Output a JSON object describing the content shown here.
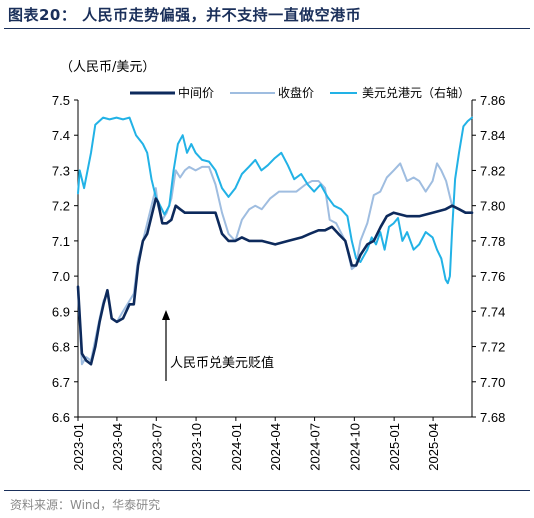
{
  "figure": {
    "title": "图表20：  人民币走势偏强，并不支持一直做空港币",
    "source": "资料来源：Wind，华泰研究"
  },
  "chart_data": {
    "type": "line",
    "y_unit_label": "（人民币/美元）",
    "ylim_left": [
      6.6,
      7.5
    ],
    "ylim_right": [
      7.68,
      7.86
    ],
    "left_ticks": [
      "6.6",
      "6.7",
      "6.8",
      "6.9",
      "7.0",
      "7.1",
      "7.2",
      "7.3",
      "7.4",
      "7.5"
    ],
    "right_ticks": [
      "7.68",
      "7.70",
      "7.72",
      "7.74",
      "7.76",
      "7.78",
      "7.80",
      "7.82",
      "7.84",
      "7.86"
    ],
    "x_ticks": [
      "2023-01",
      "2023-04",
      "2023-07",
      "2023-10",
      "2024-01",
      "2024-04",
      "2024-07",
      "2024-10",
      "2025-01",
      "2025-04"
    ],
    "x_range": [
      "2023-01-01",
      "2025-06-30"
    ],
    "legend_position": "top",
    "annotation": "人民币兑美元贬值",
    "series": [
      {
        "name": "中间价",
        "axis": "left",
        "color": "#0d2a5c",
        "points": [
          [
            "2023-01-01",
            6.97
          ],
          [
            "2023-01-10",
            6.78
          ],
          [
            "2023-01-20",
            6.76
          ],
          [
            "2023-01-31",
            6.75
          ],
          [
            "2023-02-10",
            6.8
          ],
          [
            "2023-02-20",
            6.87
          ],
          [
            "2023-03-01",
            6.92
          ],
          [
            "2023-03-10",
            6.96
          ],
          [
            "2023-03-20",
            6.88
          ],
          [
            "2023-04-01",
            6.87
          ],
          [
            "2023-04-15",
            6.88
          ],
          [
            "2023-04-30",
            6.92
          ],
          [
            "2023-05-10",
            6.92
          ],
          [
            "2023-05-20",
            7.03
          ],
          [
            "2023-05-31",
            7.1
          ],
          [
            "2023-06-10",
            7.12
          ],
          [
            "2023-06-20",
            7.17
          ],
          [
            "2023-06-30",
            7.22
          ],
          [
            "2023-07-05",
            7.21
          ],
          [
            "2023-07-15",
            7.15
          ],
          [
            "2023-07-25",
            7.15
          ],
          [
            "2023-08-05",
            7.16
          ],
          [
            "2023-08-15",
            7.2
          ],
          [
            "2023-08-25",
            7.19
          ],
          [
            "2023-09-05",
            7.18
          ],
          [
            "2023-09-30",
            7.18
          ],
          [
            "2023-10-31",
            7.18
          ],
          [
            "2023-11-15",
            7.18
          ],
          [
            "2023-11-30",
            7.12
          ],
          [
            "2023-12-15",
            7.1
          ],
          [
            "2023-12-31",
            7.1
          ],
          [
            "2024-01-15",
            7.11
          ],
          [
            "2024-02-01",
            7.1
          ],
          [
            "2024-03-01",
            7.1
          ],
          [
            "2024-04-01",
            7.09
          ],
          [
            "2024-05-01",
            7.1
          ],
          [
            "2024-06-01",
            7.11
          ],
          [
            "2024-06-20",
            7.12
          ],
          [
            "2024-07-10",
            7.13
          ],
          [
            "2024-07-25",
            7.13
          ],
          [
            "2024-08-10",
            7.14
          ],
          [
            "2024-08-25",
            7.12
          ],
          [
            "2024-09-10",
            7.1
          ],
          [
            "2024-09-25",
            7.03
          ],
          [
            "2024-10-05",
            7.03
          ],
          [
            "2024-10-15",
            7.06
          ],
          [
            "2024-10-31",
            7.09
          ],
          [
            "2024-11-15",
            7.1
          ],
          [
            "2024-12-01",
            7.14
          ],
          [
            "2024-12-15",
            7.17
          ],
          [
            "2024-12-31",
            7.18
          ],
          [
            "2025-01-31",
            7.17
          ],
          [
            "2025-02-28",
            7.17
          ],
          [
            "2025-03-31",
            7.18
          ],
          [
            "2025-04-30",
            7.19
          ],
          [
            "2025-05-15",
            7.2
          ],
          [
            "2025-05-31",
            7.19
          ],
          [
            "2025-06-15",
            7.18
          ],
          [
            "2025-06-30",
            7.18
          ]
        ]
      },
      {
        "name": "收盘价",
        "axis": "left",
        "color": "#9fbde0",
        "points": [
          [
            "2023-01-01",
            6.96
          ],
          [
            "2023-01-10",
            6.75
          ],
          [
            "2023-01-20",
            6.77
          ],
          [
            "2023-01-31",
            6.76
          ],
          [
            "2023-02-10",
            6.82
          ],
          [
            "2023-02-20",
            6.88
          ],
          [
            "2023-03-01",
            6.93
          ],
          [
            "2023-03-10",
            6.95
          ],
          [
            "2023-03-20",
            6.88
          ],
          [
            "2023-04-01",
            6.87
          ],
          [
            "2023-04-15",
            6.9
          ],
          [
            "2023-04-30",
            6.93
          ],
          [
            "2023-05-10",
            6.95
          ],
          [
            "2023-05-20",
            7.05
          ],
          [
            "2023-05-31",
            7.1
          ],
          [
            "2023-06-10",
            7.15
          ],
          [
            "2023-06-20",
            7.2
          ],
          [
            "2023-06-30",
            7.25
          ],
          [
            "2023-07-05",
            7.2
          ],
          [
            "2023-07-15",
            7.16
          ],
          [
            "2023-07-25",
            7.18
          ],
          [
            "2023-08-05",
            7.22
          ],
          [
            "2023-08-15",
            7.3
          ],
          [
            "2023-08-25",
            7.28
          ],
          [
            "2023-09-05",
            7.3
          ],
          [
            "2023-09-15",
            7.31
          ],
          [
            "2023-09-30",
            7.3
          ],
          [
            "2023-10-15",
            7.31
          ],
          [
            "2023-10-31",
            7.31
          ],
          [
            "2023-11-15",
            7.26
          ],
          [
            "2023-11-30",
            7.18
          ],
          [
            "2023-12-15",
            7.12
          ],
          [
            "2023-12-31",
            7.1
          ],
          [
            "2024-01-15",
            7.16
          ],
          [
            "2024-02-01",
            7.19
          ],
          [
            "2024-02-15",
            7.2
          ],
          [
            "2024-03-01",
            7.19
          ],
          [
            "2024-03-20",
            7.22
          ],
          [
            "2024-04-10",
            7.24
          ],
          [
            "2024-05-01",
            7.24
          ],
          [
            "2024-05-20",
            7.24
          ],
          [
            "2024-06-10",
            7.26
          ],
          [
            "2024-06-25",
            7.27
          ],
          [
            "2024-07-10",
            7.27
          ],
          [
            "2024-07-25",
            7.25
          ],
          [
            "2024-08-05",
            7.16
          ],
          [
            "2024-08-20",
            7.15
          ],
          [
            "2024-09-10",
            7.1
          ],
          [
            "2024-09-25",
            7.02
          ],
          [
            "2024-10-05",
            7.03
          ],
          [
            "2024-10-15",
            7.1
          ],
          [
            "2024-10-31",
            7.15
          ],
          [
            "2024-11-15",
            7.23
          ],
          [
            "2024-11-30",
            7.24
          ],
          [
            "2024-12-15",
            7.28
          ],
          [
            "2024-12-31",
            7.3
          ],
          [
            "2025-01-15",
            7.32
          ],
          [
            "2025-01-31",
            7.27
          ],
          [
            "2025-02-15",
            7.28
          ],
          [
            "2025-02-28",
            7.27
          ],
          [
            "2025-03-15",
            7.24
          ],
          [
            "2025-03-31",
            7.27
          ],
          [
            "2025-04-10",
            7.32
          ],
          [
            "2025-04-20",
            7.3
          ],
          [
            "2025-05-01",
            7.27
          ],
          [
            "2025-05-15",
            7.2
          ],
          [
            "2025-06-01",
            7.19
          ],
          [
            "2025-06-15",
            7.18
          ],
          [
            "2025-06-30",
            7.18
          ]
        ]
      },
      {
        "name": "美元兑港元（右轴）",
        "axis": "right",
        "color": "#22b2e6",
        "points": [
          [
            "2023-01-01",
            7.807
          ],
          [
            "2023-01-05",
            7.82
          ],
          [
            "2023-01-15",
            7.81
          ],
          [
            "2023-01-31",
            7.83
          ],
          [
            "2023-02-10",
            7.846
          ],
          [
            "2023-02-28",
            7.85
          ],
          [
            "2023-03-15",
            7.849
          ],
          [
            "2023-03-31",
            7.85
          ],
          [
            "2023-04-15",
            7.849
          ],
          [
            "2023-04-30",
            7.85
          ],
          [
            "2023-05-15",
            7.84
          ],
          [
            "2023-05-31",
            7.835
          ],
          [
            "2023-06-10",
            7.83
          ],
          [
            "2023-06-20",
            7.815
          ],
          [
            "2023-06-30",
            7.805
          ],
          [
            "2023-07-10",
            7.8
          ],
          [
            "2023-07-20",
            7.795
          ],
          [
            "2023-07-31",
            7.8
          ],
          [
            "2023-08-10",
            7.82
          ],
          [
            "2023-08-20",
            7.835
          ],
          [
            "2023-08-31",
            7.84
          ],
          [
            "2023-09-10",
            7.83
          ],
          [
            "2023-09-20",
            7.835
          ],
          [
            "2023-09-30",
            7.83
          ],
          [
            "2023-10-15",
            7.826
          ],
          [
            "2023-10-31",
            7.825
          ],
          [
            "2023-11-15",
            7.82
          ],
          [
            "2023-11-30",
            7.81
          ],
          [
            "2023-12-15",
            7.805
          ],
          [
            "2023-12-31",
            7.81
          ],
          [
            "2024-01-15",
            7.818
          ],
          [
            "2024-01-31",
            7.822
          ],
          [
            "2024-02-15",
            7.826
          ],
          [
            "2024-02-29",
            7.82
          ],
          [
            "2024-03-15",
            7.823
          ],
          [
            "2024-03-31",
            7.827
          ],
          [
            "2024-04-15",
            7.83
          ],
          [
            "2024-04-30",
            7.823
          ],
          [
            "2024-05-15",
            7.815
          ],
          [
            "2024-05-31",
            7.818
          ],
          [
            "2024-06-15",
            7.812
          ],
          [
            "2024-06-30",
            7.808
          ],
          [
            "2024-07-15",
            7.812
          ],
          [
            "2024-07-31",
            7.805
          ],
          [
            "2024-08-15",
            7.8
          ],
          [
            "2024-08-31",
            7.798
          ],
          [
            "2024-09-15",
            7.794
          ],
          [
            "2024-09-25",
            7.78
          ],
          [
            "2024-10-05",
            7.77
          ],
          [
            "2024-10-15",
            7.768
          ],
          [
            "2024-10-31",
            7.775
          ],
          [
            "2024-11-10",
            7.782
          ],
          [
            "2024-11-20",
            7.778
          ],
          [
            "2024-11-30",
            7.785
          ],
          [
            "2024-12-10",
            7.775
          ],
          [
            "2024-12-20",
            7.788
          ],
          [
            "2024-12-31",
            7.79
          ],
          [
            "2025-01-10",
            7.793
          ],
          [
            "2025-01-20",
            7.78
          ],
          [
            "2025-01-31",
            7.785
          ],
          [
            "2025-02-15",
            7.775
          ],
          [
            "2025-02-28",
            7.778
          ],
          [
            "2025-03-15",
            7.785
          ],
          [
            "2025-03-31",
            7.782
          ],
          [
            "2025-04-10",
            7.775
          ],
          [
            "2025-04-20",
            7.77
          ],
          [
            "2025-04-30",
            7.758
          ],
          [
            "2025-05-05",
            7.756
          ],
          [
            "2025-05-10",
            7.76
          ],
          [
            "2025-05-15",
            7.786
          ],
          [
            "2025-05-22",
            7.815
          ],
          [
            "2025-05-31",
            7.83
          ],
          [
            "2025-06-10",
            7.845
          ],
          [
            "2025-06-20",
            7.848
          ],
          [
            "2025-06-30",
            7.85
          ]
        ]
      }
    ]
  }
}
